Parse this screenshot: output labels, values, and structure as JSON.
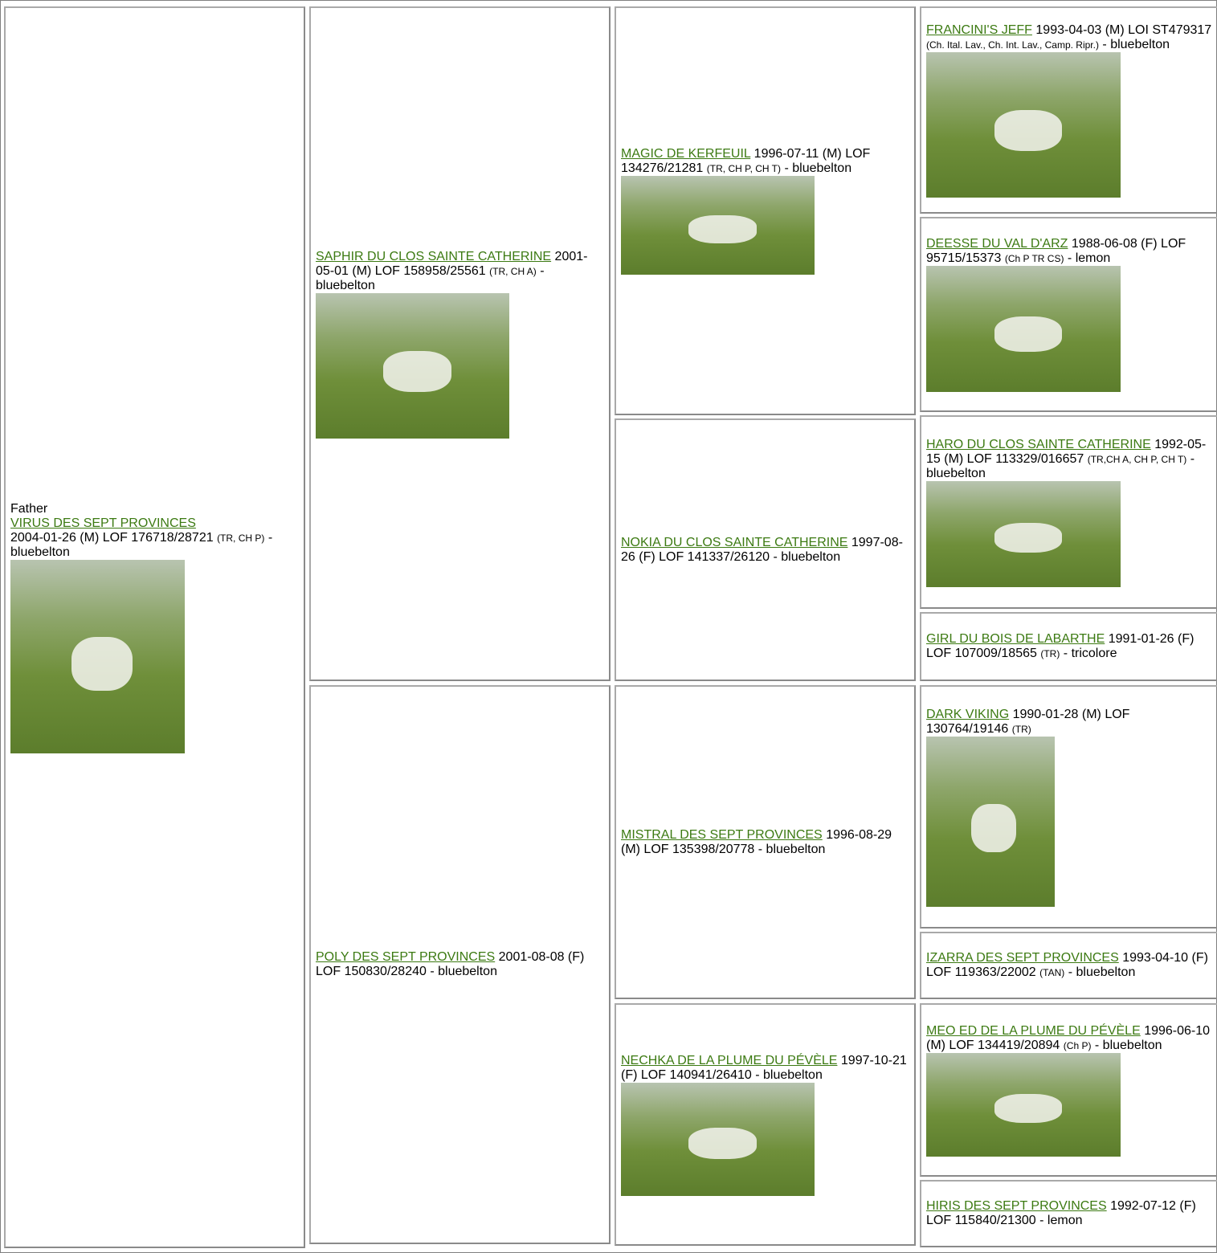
{
  "father_label": "Father",
  "dogs": [
    {
      "name": "VIRUS DES SEPT PROVINCES",
      "info": "2004-01-26 (M) LOF 176718/28721",
      "titles": "(TR, CH P)",
      "color": "- bluebelton"
    },
    {
      "name": "SAPHIR DU CLOS SAINTE CATHERINE",
      "info": "2001-05-01 (M) LOF 158958/25561",
      "titles": "(TR, CH A)",
      "color": "- bluebelton"
    },
    {
      "name": "POLY DES SEPT PROVINCES",
      "info": "2001-08-08 (F) LOF 150830/28240",
      "color": "- bluebelton"
    },
    {
      "name": "MAGIC DE KERFEUIL",
      "info": "1996-07-11 (M) LOF 134276/21281",
      "titles": "(TR, CH P, CH T)",
      "color": "- bluebelton"
    },
    {
      "name": "NOKIA DU CLOS SAINTE CATHERINE",
      "info": "1997-08-26 (F) LOF 141337/26120",
      "color": "- bluebelton"
    },
    {
      "name": "MISTRAL DES SEPT PROVINCES",
      "info": "1996-08-29 (M) LOF 135398/20778",
      "color": "- bluebelton"
    },
    {
      "name": "NECHKA DE LA PLUME DU PÉVÈLE",
      "info": "1997-10-21 (F) LOF 140941/26410",
      "color": "- bluebelton"
    },
    {
      "name": "FRANCINI'S JEFF",
      "info": "1993-04-03 (M) LOI ST479317",
      "titles": "(Ch. Ital. Lav., Ch. Int. Lav., Camp. Ripr.)",
      "color": "- bluebelton"
    },
    {
      "name": "DEESSE DU VAL D'ARZ",
      "info": "1988-06-08 (F) LOF 95715/15373",
      "titles": "(Ch P TR CS)",
      "color": "- lemon"
    },
    {
      "name": "HARO DU CLOS SAINTE CATHERINE",
      "info": "1992-05-15 (M) LOF 113329/016657",
      "titles": "(TR,CH A, CH P, CH T)",
      "color": "- bluebelton"
    },
    {
      "name": "GIRL DU BOIS DE LABARTHE",
      "info": "1991-01-26 (F) LOF 107009/18565",
      "titles": "(TR)",
      "color": "- tricolore"
    },
    {
      "name": "DARK VIKING",
      "info": "1990-01-28 (M) LOF 130764/19146",
      "titles": "(TR)"
    },
    {
      "name": "IZARRA DES SEPT PROVINCES",
      "info": "1993-04-10 (F) LOF 119363/22002",
      "titles": "(TAN)",
      "color": "- bluebelton"
    },
    {
      "name": "MEO ED DE LA PLUME DU PÉVÈLE",
      "info": "1996-06-10 (M) LOF 134419/20894",
      "titles": "(Ch P)",
      "color": "- bluebelton"
    },
    {
      "name": "HIRIS DES SEPT PROVINCES",
      "info": "1992-07-12 (F) LOF 115840/21300",
      "color": "- lemon"
    }
  ]
}
